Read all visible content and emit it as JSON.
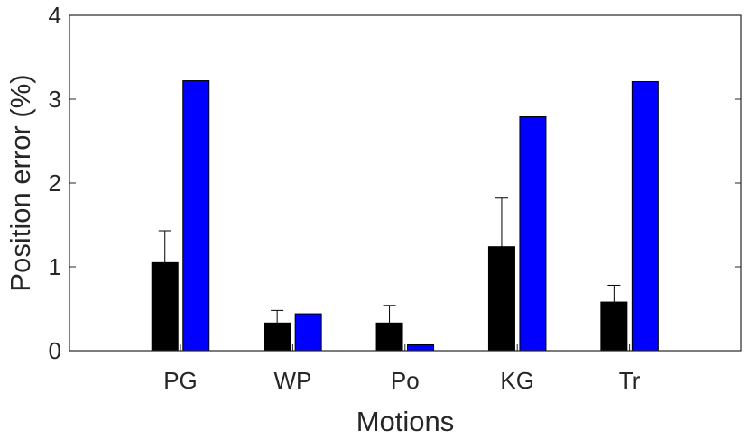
{
  "chart_data": {
    "type": "bar",
    "title": "",
    "xlabel": "Motions",
    "ylabel": "Position error (%)",
    "ylim": [
      0,
      4
    ],
    "yticks": [
      0,
      1,
      2,
      3,
      4
    ],
    "categories": [
      "PG",
      "WP",
      "Po",
      "KG",
      "Tr"
    ],
    "grid": false,
    "legend": "none",
    "series": [
      {
        "color": "#000000",
        "values": [
          1.05,
          0.33,
          0.33,
          1.24,
          0.58
        ],
        "error_plus": [
          0.38,
          0.15,
          0.21,
          0.58,
          0.2
        ]
      },
      {
        "color": "#0000ff",
        "values": [
          3.22,
          0.44,
          0.07,
          2.79,
          3.21
        ]
      }
    ]
  }
}
